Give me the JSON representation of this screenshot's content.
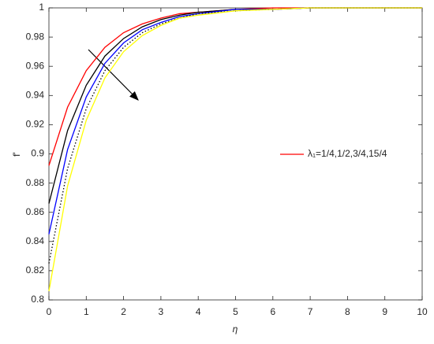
{
  "chart_data": {
    "type": "line",
    "xlabel": "η",
    "ylabel": "f'",
    "x": [
      0,
      0.5,
      1,
      1.5,
      2,
      2.5,
      3,
      3.5,
      4,
      5,
      6,
      7,
      8,
      10
    ],
    "series": [
      {
        "name": "λ₁=1/4,1/2,3/4,15/4",
        "color": "#ff0000",
        "values": [
          0.892,
          0.932,
          0.957,
          0.973,
          0.983,
          0.989,
          0.993,
          0.996,
          0.997,
          0.999,
          1,
          1,
          1,
          1
        ]
      },
      {
        "color": "#000000",
        "values": [
          0.866,
          0.916,
          0.947,
          0.967,
          0.979,
          0.987,
          0.992,
          0.995,
          0.997,
          0.999,
          0.999,
          1,
          1,
          1
        ]
      },
      {
        "color": "#0000ff",
        "values": [
          0.845,
          0.903,
          0.939,
          0.962,
          0.976,
          0.985,
          0.99,
          0.994,
          0.996,
          0.999,
          0.999,
          1,
          1,
          1
        ]
      },
      {
        "color": "#000000",
        "linestyle": "dotted",
        "values": [
          0.825,
          0.89,
          0.931,
          0.957,
          0.973,
          0.983,
          0.989,
          0.993,
          0.996,
          0.998,
          0.999,
          1,
          1,
          1
        ]
      },
      {
        "color": "#ffff00",
        "values": [
          0.806,
          0.878,
          0.923,
          0.952,
          0.97,
          0.981,
          0.988,
          0.993,
          0.995,
          0.998,
          0.999,
          1,
          1,
          1
        ]
      }
    ],
    "xlim": [
      0,
      10
    ],
    "xticks": [
      0,
      1,
      2,
      3,
      4,
      5,
      6,
      7,
      8,
      9,
      10
    ],
    "ylim": [
      0.8,
      1
    ],
    "yticks": [
      0.8,
      0.82,
      0.84,
      0.86,
      0.88,
      0.9,
      0.92,
      0.94,
      0.96,
      0.98,
      1
    ],
    "legend": "right"
  }
}
